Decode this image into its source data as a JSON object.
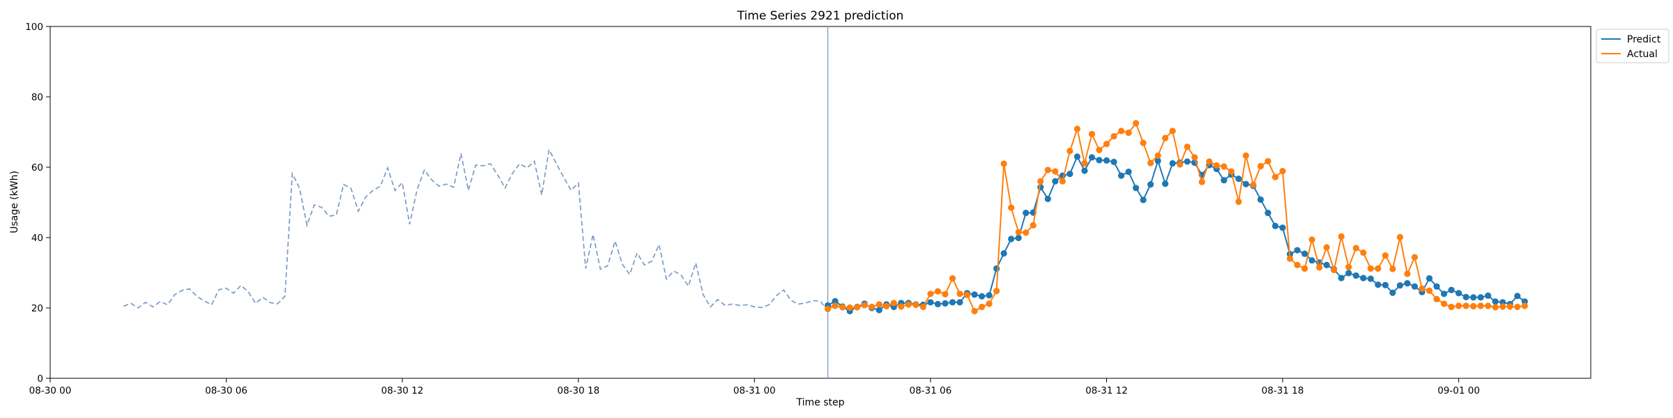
{
  "chart_data": {
    "type": "line",
    "title": "Time Series 2921 prediction",
    "xlabel": "Time step",
    "ylabel": "Usage (kWh)",
    "ylim": [
      0,
      100
    ],
    "yticks": [
      "0",
      "20",
      "40",
      "60",
      "80",
      "100"
    ],
    "xlim": [
      "2021-08-30 00:00",
      "2021-09-01 04:30"
    ],
    "xticks": [
      {
        "label": "08-30 00",
        "t": "2021-08-30 00:00"
      },
      {
        "label": "08-30 06",
        "t": "2021-08-30 06:00"
      },
      {
        "label": "08-30 12",
        "t": "2021-08-30 12:00"
      },
      {
        "label": "08-30 18",
        "t": "2021-08-30 18:00"
      },
      {
        "label": "08-31 00",
        "t": "2021-08-31 00:00"
      },
      {
        "label": "08-31 06",
        "t": "2021-08-31 06:00"
      },
      {
        "label": "08-31 12",
        "t": "2021-08-31 12:00"
      },
      {
        "label": "08-31 18",
        "t": "2021-08-31 18:00"
      },
      {
        "label": "09-01 00",
        "t": "2021-09-01 00:00"
      }
    ],
    "grid": false,
    "legend_position": "upper-right-outside",
    "split_line_at": "2021-08-31 02:30",
    "history": {
      "style": "dashed",
      "color": "#7c9ac4",
      "start": "2021-08-30 02:30",
      "interval_minutes": 15,
      "values": [
        20.5,
        21.3,
        20.0,
        21.6,
        20.3,
        21.8,
        20.9,
        23.8,
        25.0,
        25.4,
        23.3,
        22.0,
        20.9,
        25.2,
        25.6,
        24.2,
        26.4,
        24.6,
        21.3,
        23.0,
        21.5,
        21.2,
        23.3,
        58.2,
        54.0,
        43.5,
        49.3,
        48.6,
        46.1,
        46.4,
        55.1,
        54.0,
        47.5,
        51.5,
        53.4,
        54.6,
        59.8,
        53.4,
        55.6,
        43.8,
        53.5,
        59.2,
        56.4,
        54.6,
        55.2,
        54.3,
        63.9,
        53.4,
        60.6,
        60.4,
        61.0,
        57.8,
        54.1,
        58.2,
        61.0,
        59.8,
        61.7,
        52.1,
        65.0,
        61.0,
        57.1,
        53.4,
        55.5,
        31.2,
        40.9,
        31.0,
        32.0,
        39.0,
        32.4,
        29.5,
        35.6,
        32.2,
        33.3,
        38.0,
        28.2,
        30.5,
        29.3,
        26.2,
        32.8,
        23.8,
        20.3,
        22.4,
        20.7,
        21.1,
        20.7,
        20.9,
        20.3,
        20.1,
        20.9,
        23.5,
        25.1,
        22.1,
        21.1,
        21.4,
        22.1,
        21.9,
        19.0,
        21.7,
        20.8
      ]
    },
    "series": [
      {
        "name": "Predict",
        "color": "#1f77b4",
        "start": "2021-08-31 02:30",
        "interval_minutes": 15,
        "values": [
          20.7,
          21.9,
          20.4,
          19.1,
          20.3,
          21.2,
          20.0,
          19.4,
          21.0,
          20.3,
          21.4,
          21.4,
          21.0,
          20.9,
          21.6,
          21.1,
          21.3,
          21.6,
          21.6,
          24.2,
          23.8,
          23.3,
          23.6,
          31.2,
          35.5,
          39.6,
          39.9,
          47.0,
          47.1,
          54.3,
          51.0,
          56.0,
          57.6,
          58.1,
          63.0,
          59.0,
          62.8,
          62.0,
          61.9,
          61.5,
          57.6,
          58.7,
          54.1,
          50.7,
          55.1,
          61.8,
          55.3,
          61.1,
          61.3,
          61.6,
          61.3,
          57.8,
          60.6,
          59.5,
          56.3,
          57.9,
          56.7,
          55.2,
          54.7,
          50.8,
          47.0,
          43.3,
          42.8,
          35.3,
          36.4,
          35.4,
          33.5,
          32.9,
          32.2,
          31.0,
          28.5,
          29.9,
          29.2,
          28.5,
          28.3,
          26.6,
          26.5,
          24.3,
          26.4,
          27.0,
          26.1,
          24.5,
          28.4,
          26.1,
          24.0,
          25.1,
          24.2,
          23.1,
          23.0,
          23.0,
          23.5,
          21.8,
          21.6,
          21.1,
          23.4,
          21.8
        ]
      },
      {
        "name": "Actual",
        "color": "#ff7f0e",
        "start": "2021-08-31 02:30",
        "interval_minutes": 15,
        "values": [
          19.7,
          20.6,
          20.2,
          20.1,
          20.2,
          20.8,
          20.3,
          21.0,
          20.5,
          21.4,
          20.4,
          21.0,
          20.9,
          20.3,
          24.0,
          24.7,
          23.9,
          28.4,
          24.0,
          23.7,
          19.1,
          20.3,
          21.2,
          24.8,
          61.0,
          48.5,
          41.5,
          41.4,
          43.5,
          56.0,
          59.2,
          58.8,
          56.0,
          64.6,
          70.9,
          61.1,
          69.4,
          64.9,
          66.6,
          68.8,
          70.3,
          69.8,
          72.5,
          66.9,
          61.2,
          63.3,
          68.3,
          70.3,
          60.8,
          65.8,
          62.8,
          55.8,
          61.6,
          60.5,
          60.2,
          58.8,
          50.2,
          63.3,
          55.0,
          60.3,
          61.7,
          57.2,
          58.9,
          34.0,
          32.2,
          31.2,
          39.4,
          31.5,
          37.2,
          30.8,
          40.3,
          31.6,
          37.0,
          35.7,
          31.2,
          31.2,
          34.9,
          31.1,
          40.1,
          29.7,
          34.4,
          25.5,
          24.9,
          22.5,
          21.2,
          20.3,
          20.6,
          20.6,
          20.5,
          20.6,
          20.6,
          20.2,
          20.4,
          20.4,
          20.3,
          20.6
        ]
      }
    ]
  }
}
